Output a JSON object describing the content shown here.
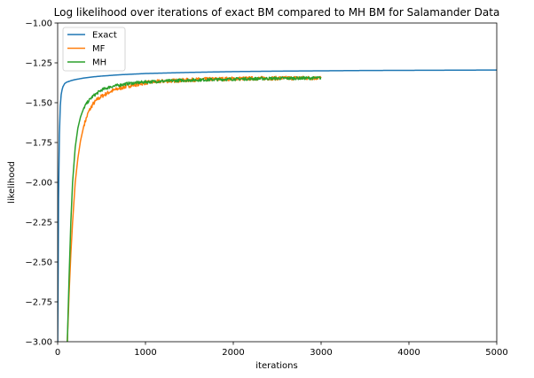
{
  "chart_data": {
    "type": "line",
    "title": "Log likelihood over iterations of exact BM compared to MH BM for Salamander Data",
    "xlabel": "iterations",
    "ylabel": "likelihood",
    "xlim": [
      0,
      5000
    ],
    "ylim": [
      -3.0,
      -1.0
    ],
    "xticks": [
      0,
      1000,
      2000,
      3000,
      4000,
      5000
    ],
    "xtick_labels": [
      "0",
      "1000",
      "2000",
      "3000",
      "4000",
      "5000"
    ],
    "yticks": [
      -3.0,
      -2.75,
      -2.5,
      -2.25,
      -2.0,
      -1.75,
      -1.5,
      -1.25,
      -1.0
    ],
    "ytick_labels": [
      "−3.00",
      "−2.75",
      "−2.50",
      "−2.25",
      "−2.00",
      "−1.75",
      "−1.50",
      "−1.25",
      "−1.00"
    ],
    "grid": false,
    "legend_position": "top-left",
    "series": [
      {
        "name": "Exact",
        "color": "#1f77b4",
        "x": [
          0,
          5,
          10,
          20,
          30,
          40,
          50,
          60,
          70,
          80,
          100,
          150,
          200,
          300,
          400,
          500,
          700,
          1000,
          1500,
          2000,
          2500,
          3000,
          3500,
          4000,
          4500,
          5000
        ],
        "y": [
          -3.0,
          -2.6,
          -2.1,
          -1.7,
          -1.52,
          -1.45,
          -1.42,
          -1.4,
          -1.39,
          -1.38,
          -1.372,
          -1.362,
          -1.355,
          -1.345,
          -1.338,
          -1.333,
          -1.325,
          -1.317,
          -1.31,
          -1.305,
          -1.302,
          -1.3,
          -1.298,
          -1.297,
          -1.296,
          -1.295
        ]
      },
      {
        "name": "MF",
        "color": "#ff7f0e",
        "x": [
          110,
          130,
          150,
          170,
          200,
          230,
          260,
          300,
          350,
          400,
          450,
          500,
          600,
          700,
          800,
          900,
          1000,
          1200,
          1400,
          1600,
          1800,
          2000,
          2200,
          2400,
          2600,
          2800,
          3000
        ],
        "y": [
          -3.0,
          -2.7,
          -2.45,
          -2.25,
          -2.0,
          -1.85,
          -1.74,
          -1.64,
          -1.56,
          -1.51,
          -1.48,
          -1.46,
          -1.43,
          -1.41,
          -1.395,
          -1.385,
          -1.375,
          -1.365,
          -1.36,
          -1.355,
          -1.352,
          -1.35,
          -1.348,
          -1.347,
          -1.346,
          -1.345,
          -1.345
        ]
      },
      {
        "name": "MH",
        "color": "#2ca02c",
        "x": [
          110,
          130,
          150,
          170,
          200,
          230,
          260,
          300,
          350,
          400,
          450,
          500,
          600,
          700,
          800,
          900,
          1000,
          1200,
          1400,
          1600,
          1800,
          2000,
          2200,
          2400,
          2600,
          2800,
          3000
        ],
        "y": [
          -3.0,
          -2.6,
          -2.25,
          -2.0,
          -1.78,
          -1.66,
          -1.59,
          -1.53,
          -1.49,
          -1.46,
          -1.44,
          -1.42,
          -1.4,
          -1.39,
          -1.38,
          -1.375,
          -1.37,
          -1.365,
          -1.36,
          -1.357,
          -1.355,
          -1.352,
          -1.35,
          -1.348,
          -1.347,
          -1.346,
          -1.345
        ]
      }
    ]
  }
}
